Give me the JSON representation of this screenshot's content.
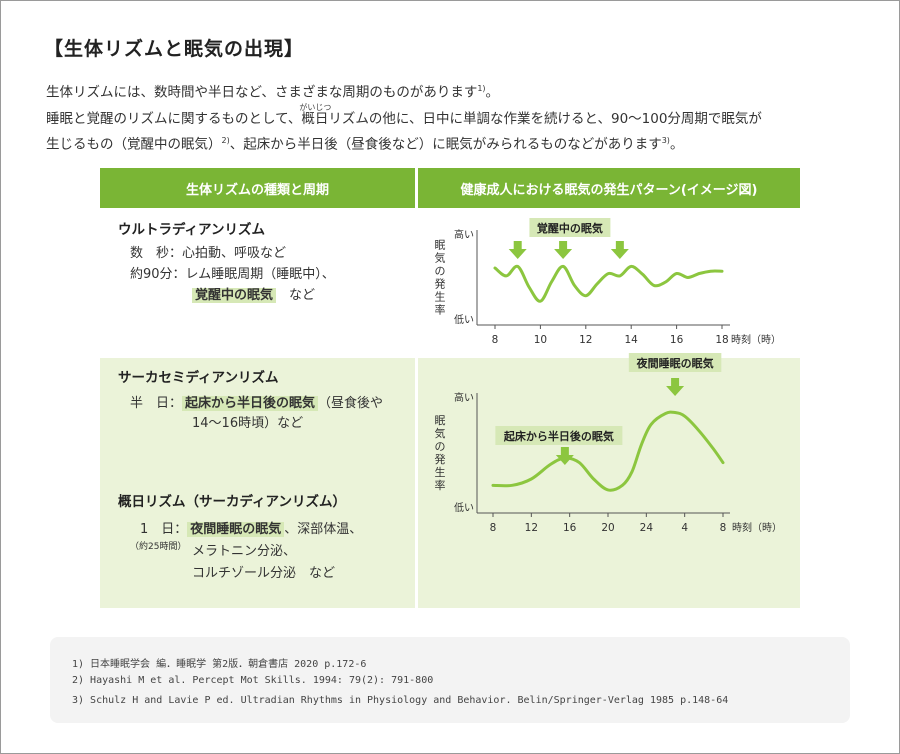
{
  "title": "【生体リズムと眠気の出現】",
  "intro": {
    "p1_text": "生体リズムには、数時間や半日など、さまざまな周期のものがあります",
    "p1_sup": "1)",
    "p1_end": "。",
    "p2_before": "睡眠と覚醒のリズムに関するものとして、",
    "p2_ruby_base": "概日",
    "p2_ruby_text": "がいじつ",
    "p2_after": "リズムの他に、日中に単調な作業を続けると、90～100分周期で眠気が",
    "p3_text": "生じるもの（覚醒中の眠気）",
    "p3_sup1": "2)",
    "p3_mid": "、起床から半日後（昼食後など）に眠気がみられるものなどがあります",
    "p3_sup2": "3)",
    "p3_end": "。"
  },
  "table": {
    "left_header": "生体リズムの種類と周期",
    "right_header": "健康成人における眠気の発生パターン(イメージ図)",
    "sections": [
      {
        "name": "ウルトラディアンリズム",
        "row1_label": "数　秒：",
        "row1_text": "心拍動、呼吸など",
        "row2_label": "約90分：",
        "row2_text": "レム睡眠周期（睡眠中）、",
        "row3_highlight": "覚醒中の眠気",
        "row3_text": "など"
      },
      {
        "name": "サーカセミディアンリズム",
        "row1_label": "半　日：",
        "row1_highlight": "起床から半日後の眠気",
        "row1_text": "（昼食後や",
        "row2_text": "14～16時頃）など"
      },
      {
        "name": "概日リズム（サーカディアンリズム）",
        "row1_label": "1　日：",
        "row1_sub": "（約25時間）",
        "row1_highlight": "夜間睡眠の眠気",
        "row1_text": "、深部体温、",
        "row2_text": "メラトニン分泌、",
        "row3_text": "コルチゾール分泌　など"
      }
    ]
  },
  "chart_data": [
    {
      "type": "line",
      "ylabel": "眠気の発生率",
      "y_high_label": "高い",
      "y_low_label": "低い",
      "xlabel": "時刻（時）",
      "x_ticks": [
        "8",
        "10",
        "12",
        "14",
        "16",
        "18"
      ],
      "x": [
        8.0,
        8.5,
        9.0,
        9.5,
        10.0,
        10.5,
        11.0,
        11.5,
        12.0,
        12.5,
        13.0,
        13.5,
        14.0,
        14.5,
        15.0,
        15.5,
        16.0,
        16.5,
        17.0,
        17.5,
        18.0
      ],
      "values": [
        0.62,
        0.52,
        0.64,
        0.38,
        0.2,
        0.45,
        0.64,
        0.4,
        0.27,
        0.42,
        0.55,
        0.52,
        0.64,
        0.54,
        0.4,
        0.44,
        0.55,
        0.5,
        0.55,
        0.58,
        0.58
      ],
      "annotation": "覚醒中の眠気",
      "arrow_x": [
        9.0,
        11.0,
        13.5
      ]
    },
    {
      "type": "line",
      "ylabel": "眠気の発生率",
      "y_high_label": "高い",
      "y_low_label": "低い",
      "xlabel": "時刻（時）",
      "x_ticks": [
        "8",
        "12",
        "16",
        "20",
        "24",
        "4",
        "8"
      ],
      "x": [
        8,
        10,
        12,
        14,
        15.5,
        17,
        18.5,
        20,
        21.5,
        22.5,
        23.5,
        24.5,
        26,
        27,
        28,
        29.5,
        31,
        32
      ],
      "values": [
        0.15,
        0.15,
        0.22,
        0.38,
        0.45,
        0.4,
        0.22,
        0.1,
        0.15,
        0.3,
        0.6,
        0.82,
        0.94,
        0.95,
        0.91,
        0.75,
        0.55,
        0.4
      ],
      "annotations": [
        {
          "label": "起床から半日後の眠気",
          "x": 15.5
        },
        {
          "label": "夜間睡眠の眠気",
          "x": 27
        }
      ]
    }
  ],
  "references": [
    "1) 日本睡眠学会 編．睡眠学 第2版．朝倉書店 2020 p.172-6",
    "2) Hayashi M et al. Percept Mot Skills. 1994: 79(2): 791-800",
    "3) Schulz H and Lavie P ed. Ultradian Rhythms in Physiology and Behavior. Belin/Springer-Verlag 1985 p.148-64"
  ],
  "colors": {
    "accent": "#7ab535",
    "highlight_bg": "#d6e8b6",
    "section_bg": "#ebf3d9",
    "curve": "#8cc63f"
  }
}
